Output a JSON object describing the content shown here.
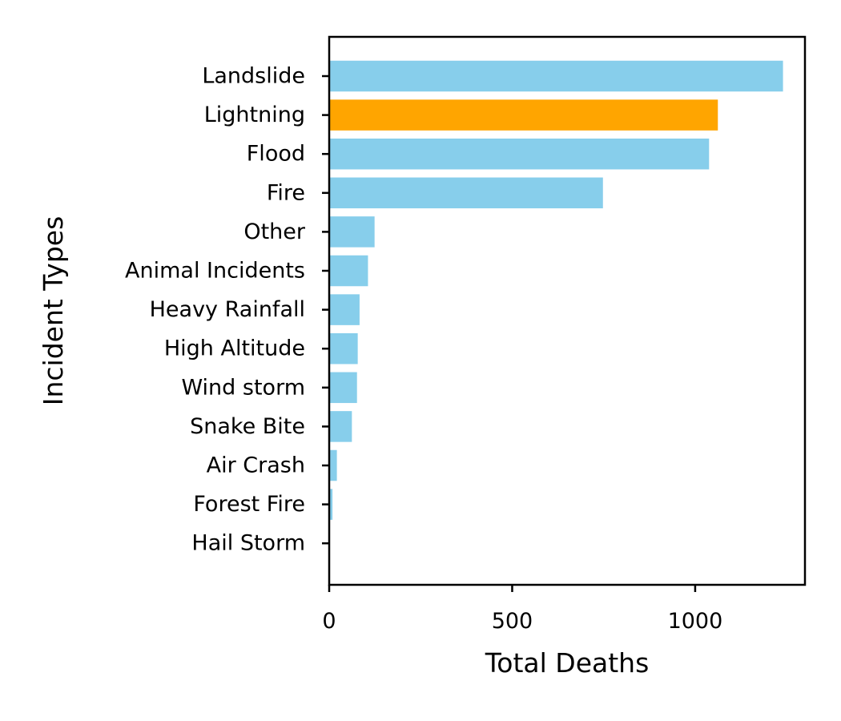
{
  "chart_data": {
    "type": "bar",
    "orientation": "horizontal",
    "title": "",
    "xlabel": "Total Deaths",
    "ylabel": "Incident Types",
    "xlim": [
      0,
      1300
    ],
    "xticks": [
      0,
      500,
      1000
    ],
    "grid": false,
    "legend": "none",
    "categories": [
      "Landslide",
      "Lightning",
      "Flood",
      "Fire",
      "Other",
      "Animal Incidents",
      "Heavy Rainfall",
      "High Altitude",
      "Wind storm",
      "Snake Bite",
      "Air Crash",
      "Forest Fire",
      "Hail Storm"
    ],
    "values": [
      1240,
      1062,
      1038,
      748,
      124,
      106,
      83,
      78,
      76,
      62,
      21,
      9,
      0
    ],
    "colors": {
      "default": "#87ceeb",
      "highlight": "#ffa500",
      "highlight_category": "Lightning"
    }
  }
}
